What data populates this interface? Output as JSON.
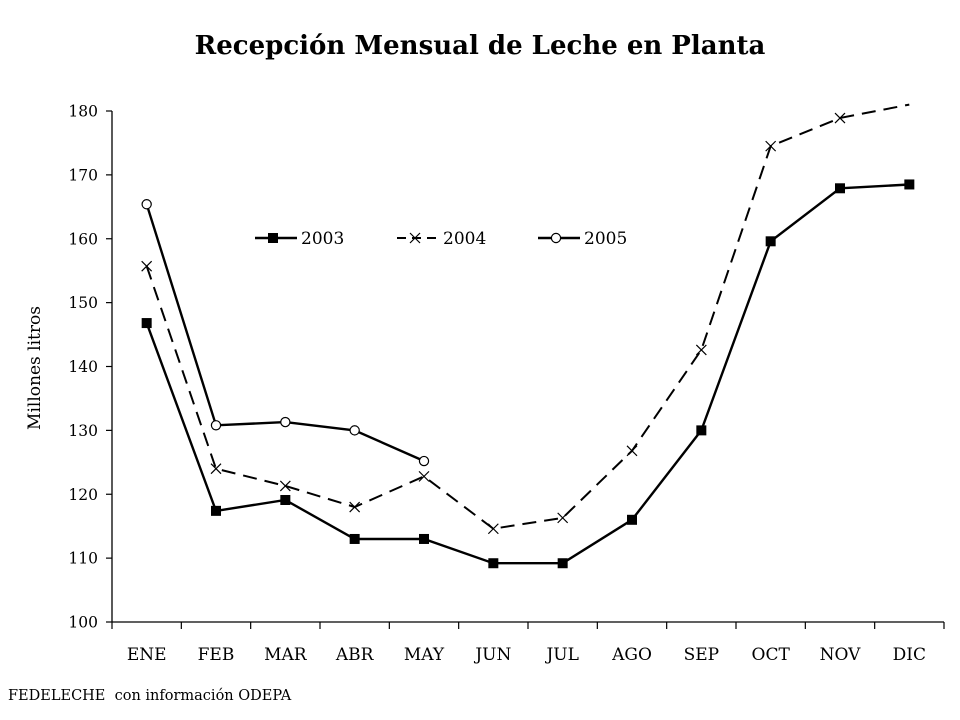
{
  "source_note": "FEDELECHE  con información ODEPA",
  "chart_data": {
    "type": "line",
    "title": "Recepción Mensual de Leche en Planta",
    "ylabel": "Millones litros",
    "xlabel": "",
    "categories": [
      "ENE",
      "FEB",
      "MAR",
      "ABR",
      "MAY",
      "JUN",
      "JUL",
      "AGO",
      "SEP",
      "OCT",
      "NOV",
      "DIC"
    ],
    "ylim": [
      100,
      180
    ],
    "yticks": [
      100,
      110,
      120,
      130,
      140,
      150,
      160,
      170,
      180
    ],
    "grid": false,
    "legend_position": "top-center",
    "series": [
      {
        "name": "2003",
        "values": [
          146.8,
          117.4,
          119.1,
          113.0,
          113.0,
          109.2,
          109.2,
          116.0,
          130.0,
          159.6,
          167.9,
          168.5
        ],
        "line_style": "solid",
        "marker": "filled-square",
        "color": "#000000"
      },
      {
        "name": "2004",
        "values": [
          155.7,
          124.0,
          121.3,
          118.0,
          122.8,
          114.6,
          116.3,
          126.8,
          142.6,
          174.5,
          178.9,
          181.0
        ],
        "line_style": "dashed",
        "marker": "x",
        "color": "#000000"
      },
      {
        "name": "2005",
        "values": [
          165.4,
          130.8,
          131.3,
          130.0,
          125.2,
          null,
          null,
          null,
          null,
          null,
          null,
          null
        ],
        "line_style": "solid",
        "marker": "open-circle",
        "color": "#000000"
      }
    ]
  }
}
